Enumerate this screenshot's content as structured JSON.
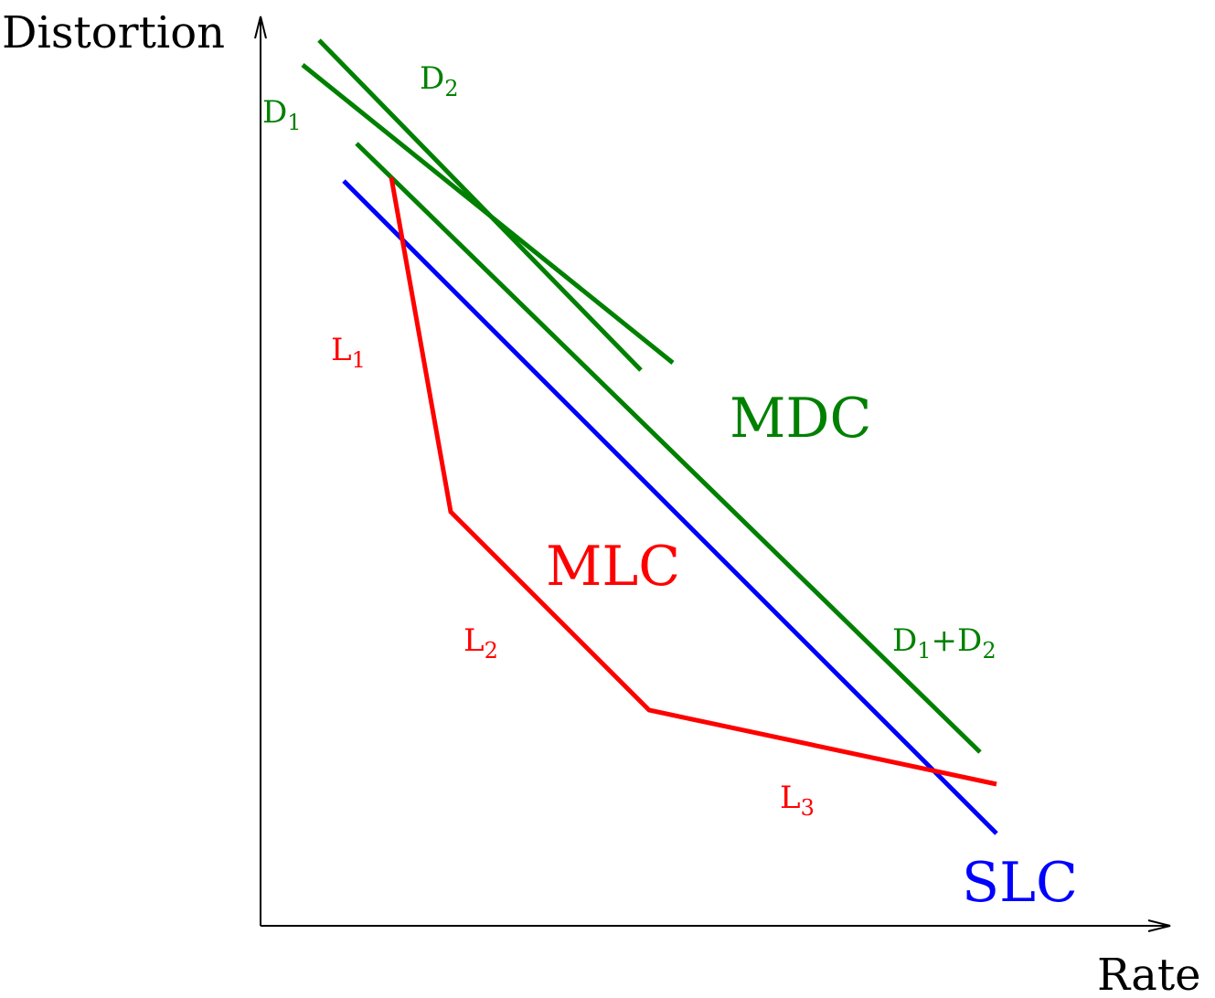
{
  "axes": {
    "y_label": "Distortion",
    "x_label": "Rate"
  },
  "colors": {
    "axis": "#000000",
    "mdc": "#008000",
    "mlc": "#ff0000",
    "slc": "#0000ff"
  },
  "curves": {
    "mdc": {
      "name": "MDC"
    },
    "mlc": {
      "name": "MLC"
    },
    "slc": {
      "name": "SLC"
    }
  },
  "segment_labels": {
    "d1": {
      "base": "D",
      "sub": "1"
    },
    "d2": {
      "base": "D",
      "sub": "2"
    },
    "d1d2": {
      "base1": "D",
      "sub1": "1",
      "plus": "+",
      "base2": "D",
      "sub2": "2"
    },
    "l1": {
      "base": "L",
      "sub": "1"
    },
    "l2": {
      "base": "L",
      "sub": "2"
    },
    "l3": {
      "base": "L",
      "sub": "3"
    }
  }
}
